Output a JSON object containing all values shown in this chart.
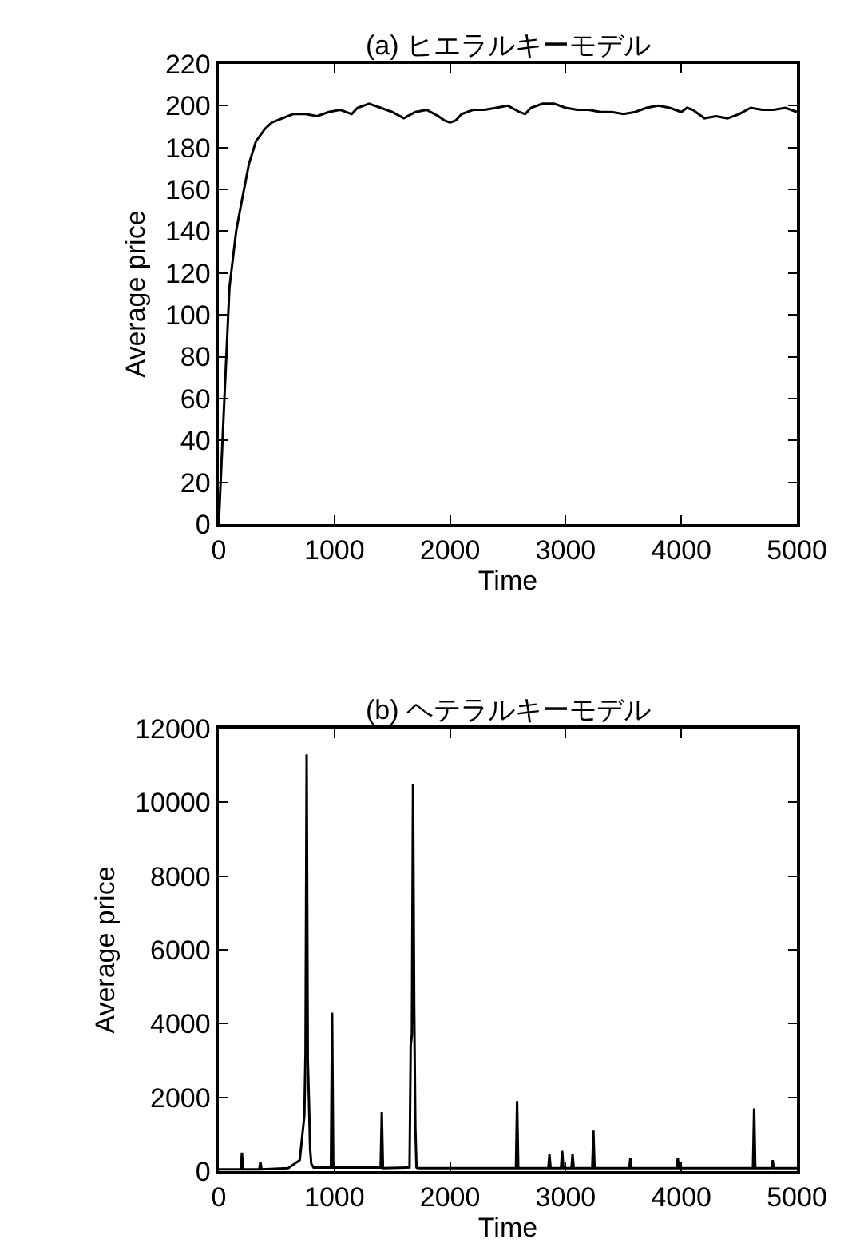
{
  "chart_data": [
    {
      "type": "line",
      "title": "(a) ヒエラルキーモデル",
      "xlabel": "Time",
      "ylabel": "Average price",
      "xlim": [
        0,
        5000
      ],
      "xticks": [
        0,
        1000,
        2000,
        3000,
        4000,
        5000
      ],
      "ylim": [
        0,
        220
      ],
      "yticks": [
        0,
        20,
        40,
        60,
        80,
        100,
        120,
        140,
        160,
        180,
        200,
        220
      ],
      "series": [
        {
          "color": "#000000",
          "x": [
            0,
            32,
            92,
            150,
            197,
            260,
            321,
            400,
            459,
            550,
            642,
            750,
            850,
            950,
            1050,
            1150,
            1200,
            1300,
            1400,
            1450,
            1500,
            1600,
            1700,
            1800,
            1900,
            1950,
            2000,
            2050,
            2100,
            2200,
            2300,
            2400,
            2500,
            2600,
            2650,
            2700,
            2800,
            2900,
            3000,
            3100,
            3200,
            3300,
            3400,
            3500,
            3600,
            3700,
            3800,
            3900,
            4000,
            4050,
            4100,
            4200,
            4300,
            4400,
            4500,
            4600,
            4700,
            4800,
            4900,
            5000
          ],
          "values": [
            0,
            40,
            113,
            140,
            154,
            172,
            183,
            189,
            192,
            194,
            196,
            196,
            195,
            197,
            198,
            196,
            199,
            201,
            199,
            198,
            197,
            194,
            197,
            198,
            195,
            193,
            192,
            193,
            196,
            198,
            198,
            199,
            200,
            197,
            196,
            199,
            201,
            201,
            199,
            198,
            198,
            197,
            197,
            196,
            197,
            199,
            200,
            199,
            197,
            199,
            198,
            194,
            195,
            194,
            196,
            199,
            198,
            198,
            199,
            197
          ]
        }
      ]
    },
    {
      "type": "line",
      "title": "(b) ヘテラルキーモデル",
      "xlabel": "Time",
      "ylabel": "Average price",
      "xlim": [
        0,
        5000
      ],
      "xticks": [
        0,
        1000,
        2000,
        3000,
        4000,
        5000
      ],
      "ylim": [
        0,
        12000
      ],
      "yticks": [
        0,
        2000,
        4000,
        6000,
        8000,
        10000,
        12000
      ],
      "series": [
        {
          "color": "#000000",
          "x": [
            0,
            190,
            200,
            210,
            350,
            360,
            370,
            600,
            700,
            740,
            750,
            760,
            770,
            780,
            790,
            800,
            820,
            970,
            980,
            990,
            1400,
            1410,
            1420,
            1650,
            1660,
            1670,
            1680,
            1690,
            1700,
            1710,
            1720,
            2570,
            2580,
            2590,
            2850,
            2860,
            2870,
            2960,
            2970,
            2980,
            3050,
            3060,
            3070,
            3230,
            3240,
            3250,
            3550,
            3560,
            3570,
            3960,
            3970,
            3980,
            4620,
            4630,
            4640,
            4780,
            4790,
            4800,
            5000
          ],
          "values": [
            50,
            50,
            500,
            50,
            50,
            250,
            50,
            80,
            300,
            1500,
            3200,
            11300,
            3000,
            1900,
            600,
            200,
            100,
            100,
            4300,
            100,
            100,
            1600,
            80,
            100,
            3400,
            3700,
            10500,
            4500,
            1200,
            100,
            80,
            80,
            1900,
            80,
            80,
            450,
            80,
            80,
            550,
            80,
            80,
            450,
            80,
            80,
            1100,
            80,
            80,
            350,
            80,
            80,
            350,
            80,
            80,
            1700,
            80,
            80,
            300,
            80,
            80
          ]
        }
      ]
    }
  ]
}
